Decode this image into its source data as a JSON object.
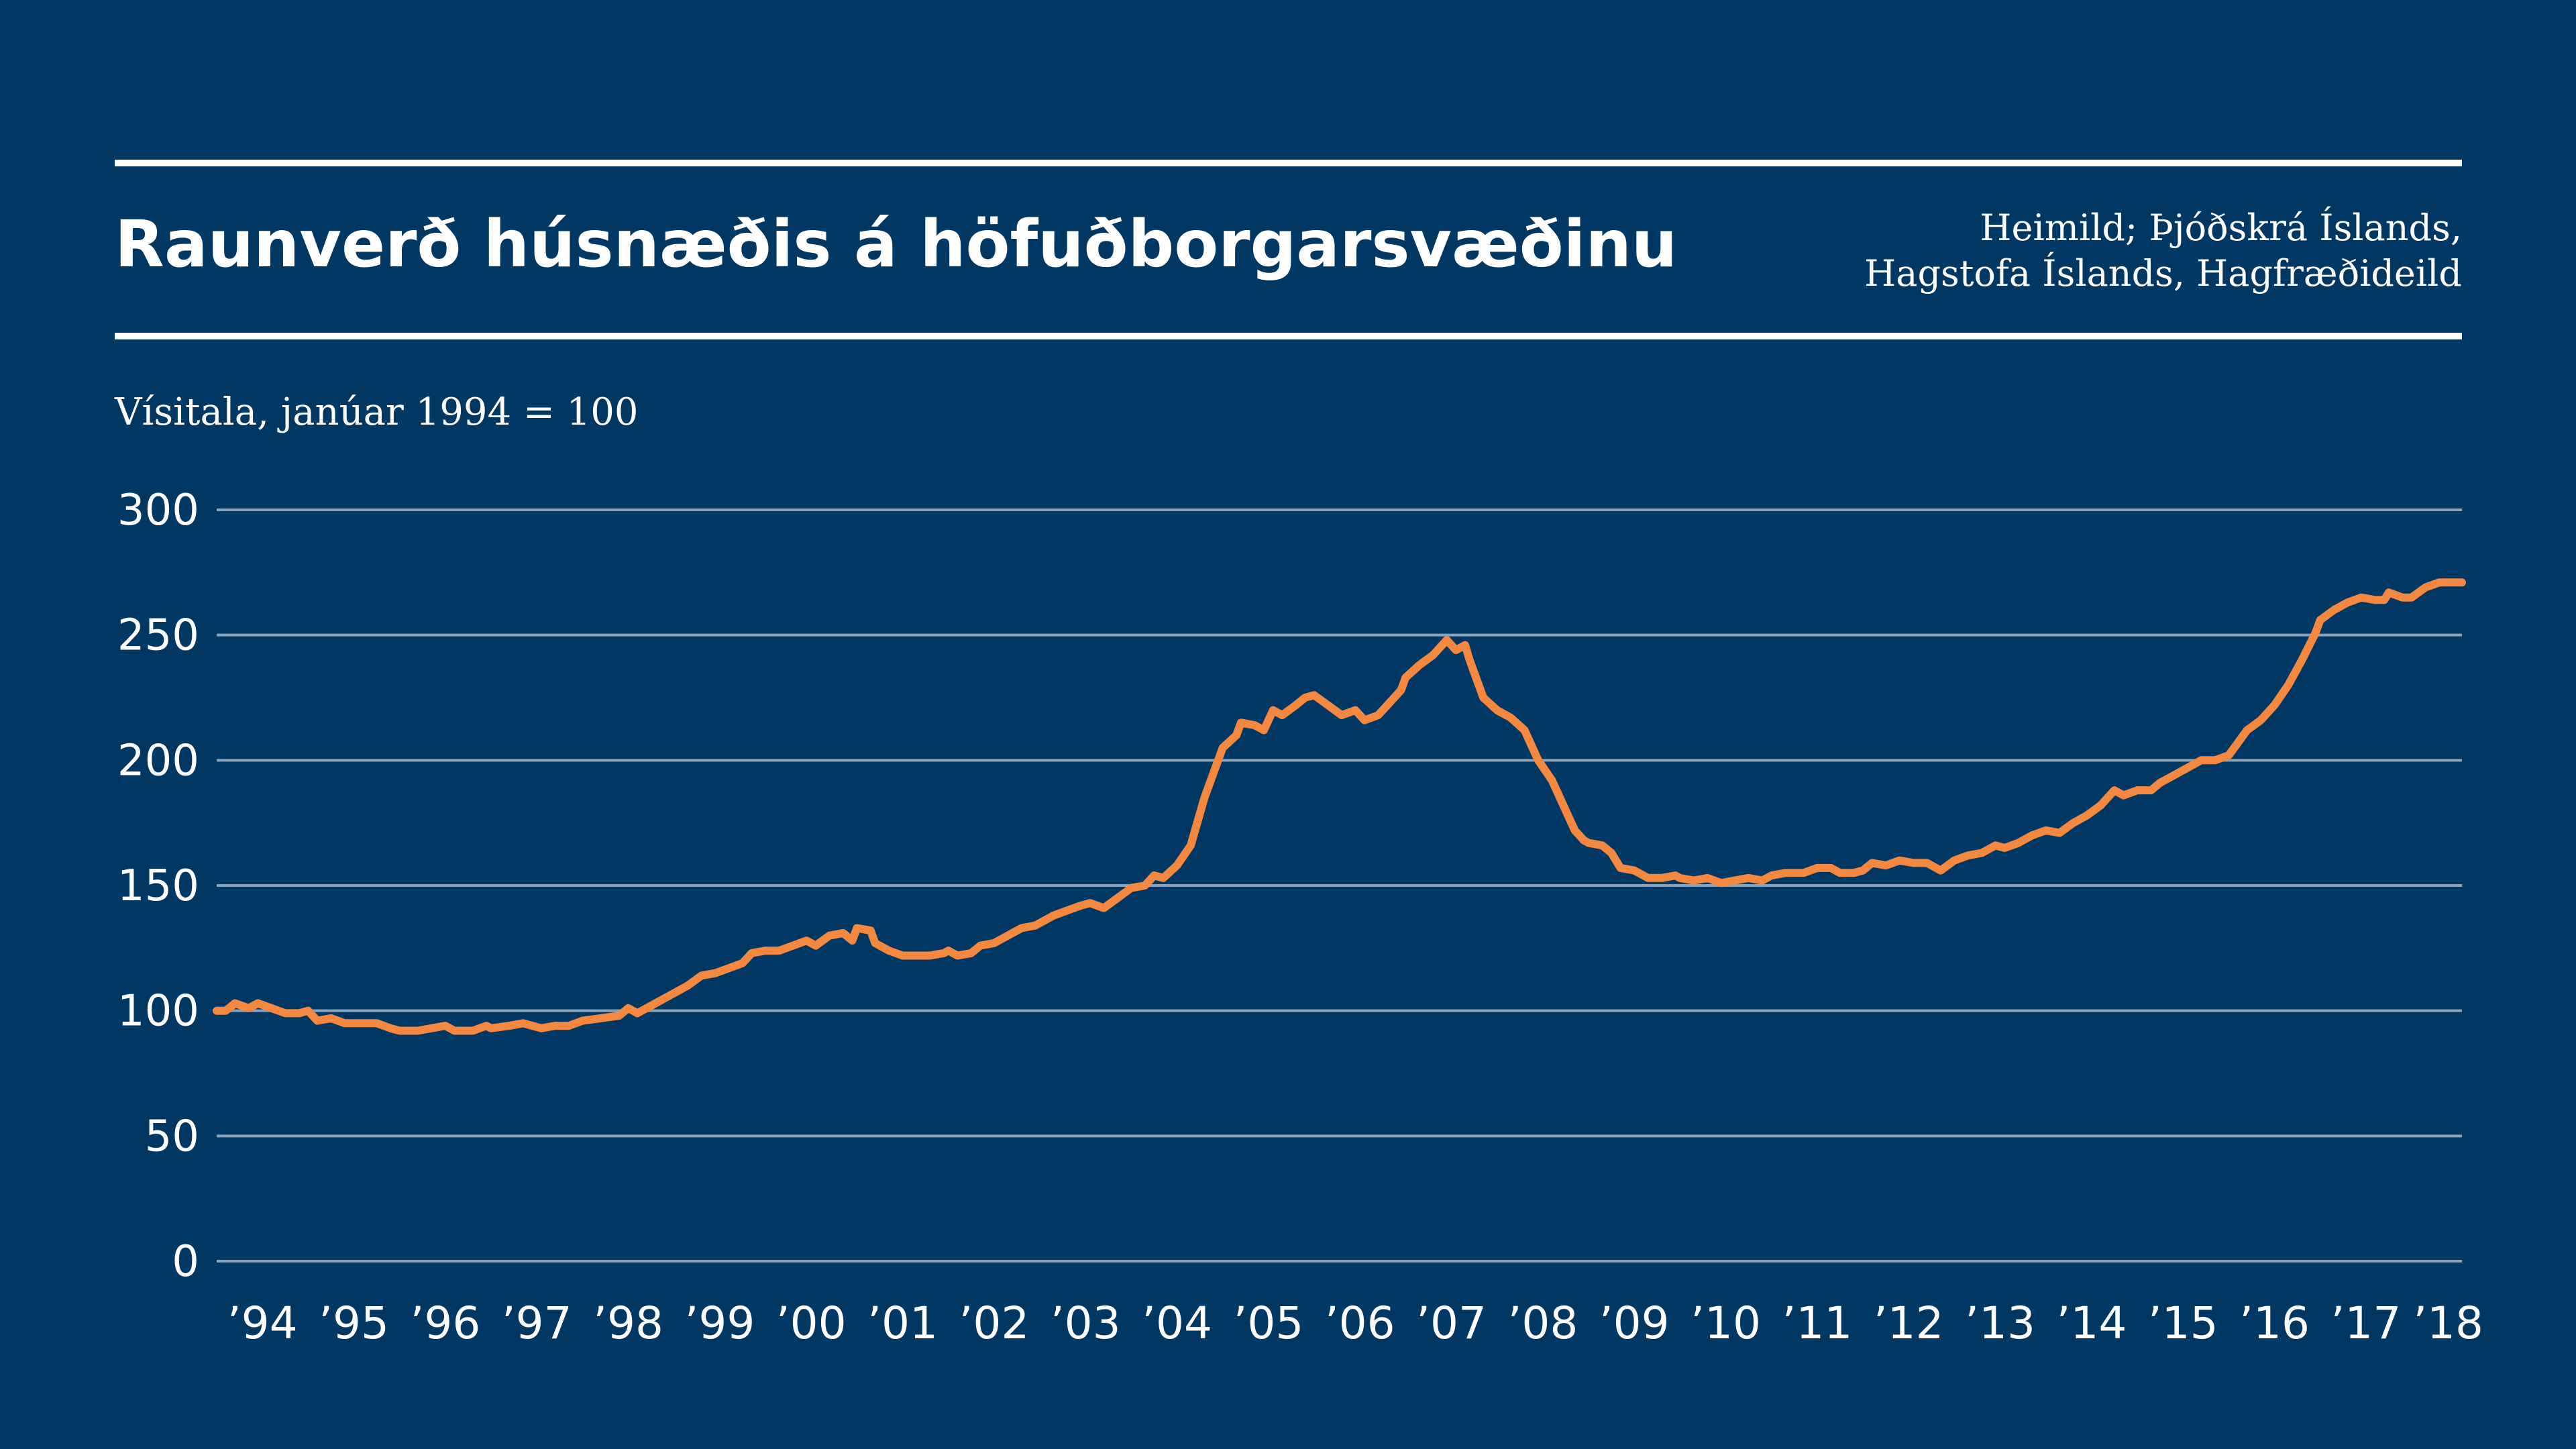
{
  "header": {
    "title": "Raunverð húsnæðis á höfuðborgarsvæðinu",
    "source_line1": "Heimild; Þjóðskrá Íslands,",
    "source_line2": "Hagstofa Íslands, Hagfræðideild"
  },
  "colors": {
    "background": "#003863",
    "line": "#F58840",
    "grid": "#8AA3BA",
    "text": "#FFFFFF"
  },
  "chart_data": {
    "type": "line",
    "title": "Raunverð húsnæðis á höfuðborgarsvæðinu",
    "ylabel": "Vísitala, janúar 1994 = 100",
    "xlabel": "",
    "ylim": [
      0,
      300
    ],
    "xlim": [
      1994.0,
      2018.55
    ],
    "yticks": [
      "0",
      "50",
      "100",
      "150",
      "200",
      "250",
      "300"
    ],
    "xticks": [
      "’94",
      "’95",
      "’96",
      "’97",
      "’98",
      "’99",
      "’00",
      "’01",
      "’02",
      "’03",
      "’04",
      "’05",
      "’06",
      "’07",
      "’08",
      "’09",
      "’10",
      "’11",
      "’12",
      "’13",
      "’14",
      "’15",
      "’16",
      "’17",
      "’18"
    ],
    "grid": true,
    "legend": "none",
    "series": [
      {
        "points": [
          [
            1994.0,
            100
          ],
          [
            1994.1,
            100
          ],
          [
            1994.2,
            103
          ],
          [
            1994.35,
            101
          ],
          [
            1994.45,
            103
          ],
          [
            1994.6,
            101
          ],
          [
            1994.75,
            99
          ],
          [
            1994.9,
            99
          ],
          [
            1995.0,
            100
          ],
          [
            1995.1,
            96
          ],
          [
            1995.25,
            97
          ],
          [
            1995.4,
            95
          ],
          [
            1995.55,
            95
          ],
          [
            1995.75,
            95
          ],
          [
            1995.9,
            93
          ],
          [
            1996.0,
            92
          ],
          [
            1996.2,
            92
          ],
          [
            1996.35,
            93
          ],
          [
            1996.5,
            94
          ],
          [
            1996.6,
            92
          ],
          [
            1996.8,
            92
          ],
          [
            1996.95,
            94
          ],
          [
            1997.0,
            93
          ],
          [
            1997.2,
            94
          ],
          [
            1997.35,
            95
          ],
          [
            1997.55,
            93
          ],
          [
            1997.7,
            94
          ],
          [
            1997.85,
            94
          ],
          [
            1998.0,
            96
          ],
          [
            1998.2,
            97
          ],
          [
            1998.4,
            98
          ],
          [
            1998.5,
            101
          ],
          [
            1998.6,
            99
          ],
          [
            1998.75,
            102
          ],
          [
            1998.9,
            105
          ],
          [
            1999.0,
            107
          ],
          [
            1999.15,
            110
          ],
          [
            1999.3,
            114
          ],
          [
            1999.45,
            115
          ],
          [
            1999.6,
            117
          ],
          [
            1999.75,
            119
          ],
          [
            1999.85,
            123
          ],
          [
            2000.0,
            124
          ],
          [
            2000.15,
            124
          ],
          [
            2000.3,
            126
          ],
          [
            2000.45,
            128
          ],
          [
            2000.55,
            126
          ],
          [
            2000.7,
            130
          ],
          [
            2000.85,
            131
          ],
          [
            2000.95,
            128
          ],
          [
            2001.0,
            133
          ],
          [
            2001.15,
            132
          ],
          [
            2001.2,
            127
          ],
          [
            2001.35,
            124
          ],
          [
            2001.5,
            122
          ],
          [
            2001.65,
            122
          ],
          [
            2001.8,
            122
          ],
          [
            2001.95,
            123
          ],
          [
            2002.0,
            124
          ],
          [
            2002.1,
            122
          ],
          [
            2002.25,
            123
          ],
          [
            2002.35,
            126
          ],
          [
            2002.5,
            127
          ],
          [
            2002.65,
            130
          ],
          [
            2002.8,
            133
          ],
          [
            2002.95,
            134
          ],
          [
            2003.0,
            135
          ],
          [
            2003.15,
            138
          ],
          [
            2003.3,
            140
          ],
          [
            2003.45,
            142
          ],
          [
            2003.55,
            143
          ],
          [
            2003.7,
            141
          ],
          [
            2003.85,
            145
          ],
          [
            2004.0,
            149
          ],
          [
            2004.15,
            150
          ],
          [
            2004.25,
            154
          ],
          [
            2004.35,
            153
          ],
          [
            2004.5,
            158
          ],
          [
            2004.65,
            166
          ],
          [
            2004.8,
            185
          ],
          [
            2004.9,
            195
          ],
          [
            2005.0,
            205
          ],
          [
            2005.15,
            210
          ],
          [
            2005.2,
            215
          ],
          [
            2005.35,
            214
          ],
          [
            2005.45,
            212
          ],
          [
            2005.55,
            220
          ],
          [
            2005.65,
            218
          ],
          [
            2005.8,
            222
          ],
          [
            2005.9,
            225
          ],
          [
            2006.0,
            226
          ],
          [
            2006.15,
            222
          ],
          [
            2006.3,
            218
          ],
          [
            2006.45,
            220
          ],
          [
            2006.55,
            216
          ],
          [
            2006.7,
            218
          ],
          [
            2006.8,
            222
          ],
          [
            2006.95,
            228
          ],
          [
            2007.0,
            233
          ],
          [
            2007.15,
            238
          ],
          [
            2007.3,
            242
          ],
          [
            2007.45,
            248
          ],
          [
            2007.55,
            244
          ],
          [
            2007.65,
            246
          ],
          [
            2007.7,
            240
          ],
          [
            2007.85,
            225
          ],
          [
            2008.0,
            220
          ],
          [
            2008.15,
            217
          ],
          [
            2008.3,
            212
          ],
          [
            2008.45,
            200
          ],
          [
            2008.6,
            192
          ],
          [
            2008.75,
            180
          ],
          [
            2008.85,
            172
          ],
          [
            2008.95,
            168
          ],
          [
            2009.0,
            167
          ],
          [
            2009.15,
            166
          ],
          [
            2009.25,
            163
          ],
          [
            2009.35,
            157
          ],
          [
            2009.5,
            156
          ],
          [
            2009.65,
            153
          ],
          [
            2009.8,
            153
          ],
          [
            2009.95,
            154
          ],
          [
            2010.0,
            153
          ],
          [
            2010.15,
            152
          ],
          [
            2010.3,
            153
          ],
          [
            2010.45,
            151
          ],
          [
            2010.6,
            152
          ],
          [
            2010.75,
            153
          ],
          [
            2010.9,
            152
          ],
          [
            2011.0,
            154
          ],
          [
            2011.15,
            155
          ],
          [
            2011.35,
            155
          ],
          [
            2011.5,
            157
          ],
          [
            2011.65,
            157
          ],
          [
            2011.75,
            155
          ],
          [
            2011.9,
            155
          ],
          [
            2012.0,
            156
          ],
          [
            2012.1,
            159
          ],
          [
            2012.25,
            158
          ],
          [
            2012.4,
            160
          ],
          [
            2012.55,
            159
          ],
          [
            2012.7,
            159
          ],
          [
            2012.85,
            156
          ],
          [
            2013.0,
            160
          ],
          [
            2013.15,
            162
          ],
          [
            2013.3,
            163
          ],
          [
            2013.45,
            166
          ],
          [
            2013.55,
            165
          ],
          [
            2013.7,
            167
          ],
          [
            2013.85,
            170
          ],
          [
            2014.0,
            172
          ],
          [
            2014.15,
            171
          ],
          [
            2014.3,
            175
          ],
          [
            2014.45,
            178
          ],
          [
            2014.6,
            182
          ],
          [
            2014.75,
            188
          ],
          [
            2014.85,
            186
          ],
          [
            2015.0,
            188
          ],
          [
            2015.15,
            188
          ],
          [
            2015.25,
            191
          ],
          [
            2015.4,
            194
          ],
          [
            2015.55,
            197
          ],
          [
            2015.7,
            200
          ],
          [
            2015.85,
            200
          ],
          [
            2016.0,
            202
          ],
          [
            2016.1,
            207
          ],
          [
            2016.2,
            212
          ],
          [
            2016.35,
            216
          ],
          [
            2016.5,
            222
          ],
          [
            2016.65,
            230
          ],
          [
            2016.8,
            240
          ],
          [
            2016.95,
            251
          ],
          [
            2017.0,
            256
          ],
          [
            2017.15,
            260
          ],
          [
            2017.3,
            263
          ],
          [
            2017.45,
            265
          ],
          [
            2017.6,
            264
          ],
          [
            2017.7,
            264
          ],
          [
            2017.75,
            267
          ],
          [
            2017.9,
            265
          ],
          [
            2018.0,
            265
          ],
          [
            2018.15,
            269
          ],
          [
            2018.3,
            271
          ],
          [
            2018.45,
            271
          ],
          [
            2018.55,
            271
          ]
        ]
      }
    ]
  }
}
